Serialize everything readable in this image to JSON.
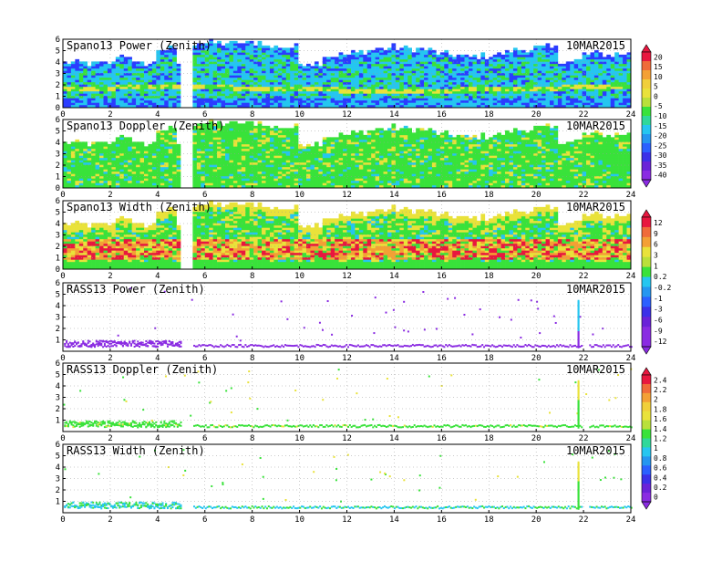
{
  "chart_data": [
    {
      "type": "heatmap",
      "title": "Spano13 Power (Zenith)",
      "date": "10MAR2015",
      "x_ticks": [
        "0",
        "2",
        "4",
        "6",
        "8",
        "10",
        "12",
        "14",
        "16",
        "18",
        "20",
        "22",
        "24"
      ],
      "y_ticks": [
        "0",
        "1",
        "2",
        "3",
        "4",
        "5",
        "6"
      ],
      "xlim": [
        0,
        24
      ],
      "ylim": [
        0,
        6
      ],
      "colorbar": "power"
    },
    {
      "type": "heatmap",
      "title": "Spano13 Doppler (Zenith)",
      "date": "10MAR2015",
      "x_ticks": [
        "0",
        "2",
        "4",
        "6",
        "8",
        "10",
        "12",
        "14",
        "16",
        "18",
        "20",
        "22",
        "24"
      ],
      "y_ticks": [
        "0",
        "1",
        "2",
        "3",
        "4",
        "5",
        "6"
      ],
      "xlim": [
        0,
        24
      ],
      "ylim": [
        0,
        6
      ],
      "colorbar": "power"
    },
    {
      "type": "heatmap",
      "title": "Spano13 Width (Zenith)",
      "date": "10MAR2015",
      "x_ticks": [
        "0",
        "2",
        "4",
        "6",
        "8",
        "10",
        "12",
        "14",
        "16",
        "18",
        "20",
        "22",
        "24"
      ],
      "y_ticks": [
        "0",
        "1",
        "2",
        "3",
        "4",
        "5",
        "6"
      ],
      "xlim": [
        0,
        24
      ],
      "ylim": [
        0,
        6
      ],
      "colorbar": "doppler"
    },
    {
      "type": "scatter",
      "title": "RASS13 Power (Zenith)",
      "date": "10MAR2015",
      "x_ticks": [
        "0",
        "2",
        "4",
        "6",
        "8",
        "10",
        "12",
        "14",
        "16",
        "18",
        "20",
        "22",
        "24"
      ],
      "y_ticks": [
        "1",
        "2",
        "3",
        "4",
        "5",
        "6"
      ],
      "xlim": [
        0,
        24
      ],
      "ylim": [
        0,
        6
      ],
      "colorbar": "doppler"
    },
    {
      "type": "scatter",
      "title": "RASS13 Doppler (Zenith)",
      "date": "10MAR2015",
      "x_ticks": [
        "0",
        "2",
        "4",
        "6",
        "8",
        "10",
        "12",
        "14",
        "16",
        "18",
        "20",
        "22",
        "24"
      ],
      "y_ticks": [
        "1",
        "2",
        "3",
        "4",
        "5",
        "6"
      ],
      "xlim": [
        0,
        24
      ],
      "ylim": [
        0,
        6
      ],
      "colorbar": "width"
    },
    {
      "type": "scatter",
      "title": "RASS13 Width (Zenith)",
      "date": "10MAR2015",
      "x_ticks": [
        "0",
        "2",
        "4",
        "6",
        "8",
        "10",
        "12",
        "14",
        "16",
        "18",
        "20",
        "22",
        "24"
      ],
      "y_ticks": [
        "1",
        "2",
        "3",
        "4",
        "5",
        "6"
      ],
      "xlim": [
        0,
        24
      ],
      "ylim": [
        0,
        6
      ],
      "colorbar": "width"
    }
  ],
  "colorbars": {
    "power": {
      "labels": [
        "20",
        "15",
        "10",
        "5",
        "0",
        "-5",
        "-10",
        "-15",
        "-20",
        "-25",
        "-30",
        "-35",
        "-40"
      ]
    },
    "doppler": {
      "labels": [
        "12",
        "9",
        "6",
        "3",
        "1",
        "0.2",
        "-0.2",
        "-1",
        "-3",
        "-6",
        "-9",
        "-12"
      ]
    },
    "width": {
      "labels": [
        "2.4",
        "2.2",
        "2",
        "1.8",
        "1.6",
        "1.4",
        "1.2",
        "1",
        "0.8",
        "0.6",
        "0.4",
        "0.2",
        "0"
      ]
    }
  },
  "colors": {
    "blue": "#2b3cff",
    "cyan": "#25c6f0",
    "green": "#39e23a",
    "yellow": "#e9e23a",
    "orange": "#f3a035",
    "red": "#e8173f",
    "purple": "#8a2be2"
  }
}
